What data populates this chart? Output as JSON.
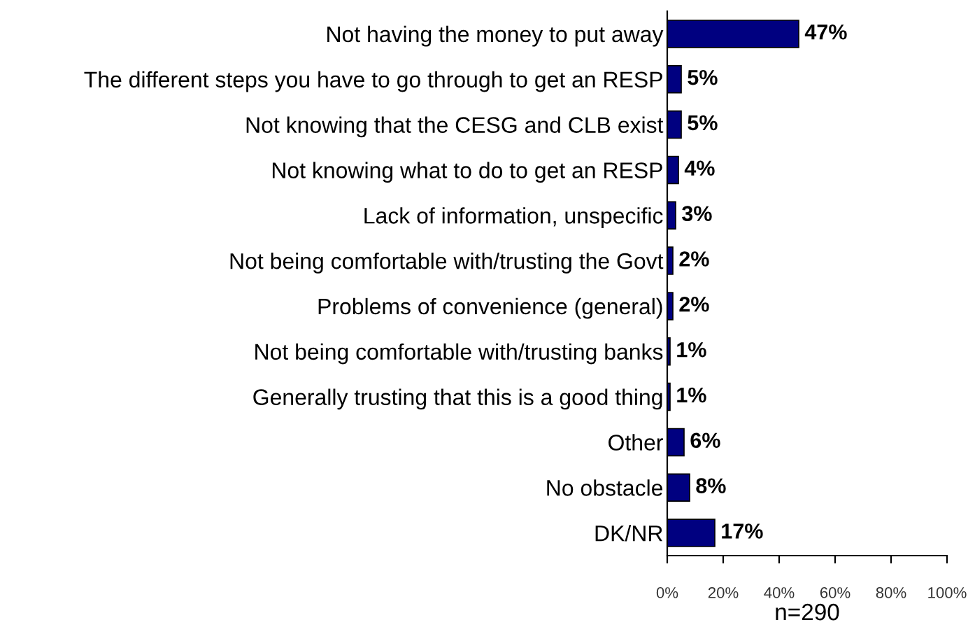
{
  "chart_data": {
    "type": "bar",
    "orientation": "horizontal",
    "xlabel": "n=290",
    "categories": [
      "Not having the money to put away",
      "The different steps you have to go through to get an RESP",
      "Not knowing that the CESG and CLB exist",
      "Not knowing what to do to get an RESP",
      "Lack of information, unspecific",
      "Not being comfortable with/trusting the Govt",
      "Problems of convenience (general)",
      "Not being comfortable with/trusting banks",
      "Generally trusting that this is a good thing",
      "Other",
      "No obstacle",
      "DK/NR"
    ],
    "values": [
      47,
      5,
      5,
      4,
      3,
      2,
      2,
      1,
      1,
      6,
      8,
      17
    ],
    "value_labels": [
      "47%",
      "5%",
      "5%",
      "4%",
      "3%",
      "2%",
      "2%",
      "1%",
      "1%",
      "6%",
      "8%",
      "17%"
    ],
    "color": "#000080",
    "xlim": [
      0,
      100
    ],
    "xticks": [
      {
        "value": 0,
        "label": "0%"
      },
      {
        "value": 20,
        "label": "20%"
      },
      {
        "value": 40,
        "label": "40%"
      },
      {
        "value": 60,
        "label": "60%"
      },
      {
        "value": 80,
        "label": "80%"
      },
      {
        "value": 100,
        "label": "100%"
      }
    ],
    "grid": false
  }
}
